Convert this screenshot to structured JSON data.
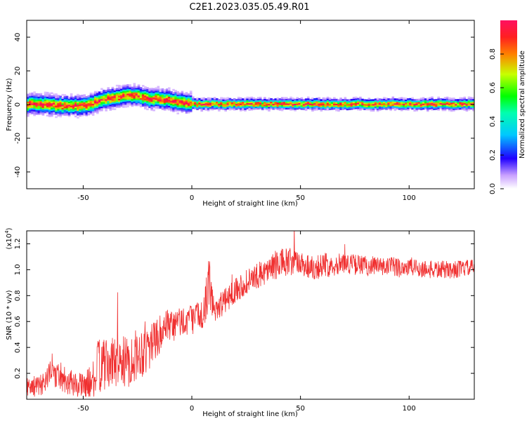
{
  "title": "C2E1.2023.035.05.49.R01",
  "chart_data": [
    {
      "type": "heatmap",
      "xlabel": "Height of straight line (km)",
      "ylabel": "Frequency (Hz)",
      "xlim": [
        -76,
        130
      ],
      "ylim": [
        -50,
        50
      ],
      "xticks": [
        -50,
        0,
        50,
        100
      ],
      "yticks": [
        -40,
        -20,
        0,
        20,
        40
      ],
      "xtick_labels": [
        "-50",
        "0",
        "50",
        "100"
      ],
      "ytick_labels": [
        "-40",
        "-20",
        "0",
        "20",
        "40"
      ],
      "colorbar": {
        "label": "Normalized spectral amplitude",
        "range": [
          0,
          1
        ],
        "ticks": [
          0,
          0.2,
          0.4,
          0.6,
          0.8
        ],
        "tick_labels": [
          "0.0",
          "0.2",
          "0.4",
          "0.6",
          "0.8"
        ]
      },
      "ridge_center": {
        "x": [
          -76,
          -70,
          -60,
          -50,
          -40,
          -30,
          -25,
          -20,
          -15,
          -10,
          -5,
          0,
          10,
          20,
          40,
          60,
          80,
          100,
          110,
          120,
          130
        ],
        "y": [
          0,
          0,
          -1,
          -1,
          3,
          5,
          5,
          3,
          3,
          2,
          1,
          0,
          0,
          0,
          0,
          0,
          0,
          0,
          0,
          0,
          0
        ]
      }
    },
    {
      "type": "line",
      "xlabel": "Height of straight line (km)",
      "ylabel": "SNR (10 * v/v)",
      "y_multiplier": "(x10",
      "y_multiplier_exp": "4",
      "y_multiplier_close": ")",
      "xlim": [
        -76,
        130
      ],
      "ylim": [
        0,
        1.3
      ],
      "xticks": [
        -50,
        0,
        50,
        100
      ],
      "yticks": [
        0.2,
        0.4,
        0.6,
        0.8,
        1.0,
        1.2
      ],
      "xtick_labels": [
        "-50",
        "0",
        "50",
        "100"
      ],
      "ytick_labels": [
        "0.2",
        "0.4",
        "0.6",
        "0.8",
        "1.0",
        "1.2"
      ],
      "color": "#f03030",
      "series": [
        {
          "x": [
            -76,
            -70,
            -65,
            -60,
            -55,
            -50,
            -45,
            -42,
            -40,
            -35,
            -30,
            -25,
            -20,
            -15,
            -10,
            -5,
            0,
            5,
            8,
            10,
            15,
            20,
            25,
            30,
            35,
            40,
            45,
            50,
            55,
            60,
            70,
            80,
            90,
            100,
            110,
            120,
            130
          ],
          "y": [
            0.1,
            0.1,
            0.2,
            0.18,
            0.12,
            0.1,
            0.15,
            0.3,
            0.25,
            0.3,
            0.28,
            0.35,
            0.4,
            0.5,
            0.55,
            0.6,
            0.62,
            0.65,
            0.9,
            0.7,
            0.75,
            0.85,
            0.9,
            0.95,
            1.0,
            1.05,
            1.05,
            1.05,
            1.02,
            1.03,
            1.05,
            1.03,
            1.02,
            1.02,
            1.0,
            1.0,
            1.02
          ],
          "noise": [
            0.08,
            0.08,
            0.1,
            0.12,
            0.1,
            0.1,
            0.15,
            0.25,
            0.2,
            0.2,
            0.2,
            0.2,
            0.2,
            0.15,
            0.15,
            0.12,
            0.12,
            0.12,
            0.2,
            0.12,
            0.1,
            0.1,
            0.1,
            0.1,
            0.1,
            0.12,
            0.12,
            0.1,
            0.1,
            0.1,
            0.08,
            0.08,
            0.08,
            0.08,
            0.07,
            0.07,
            0.06
          ]
        }
      ]
    }
  ]
}
